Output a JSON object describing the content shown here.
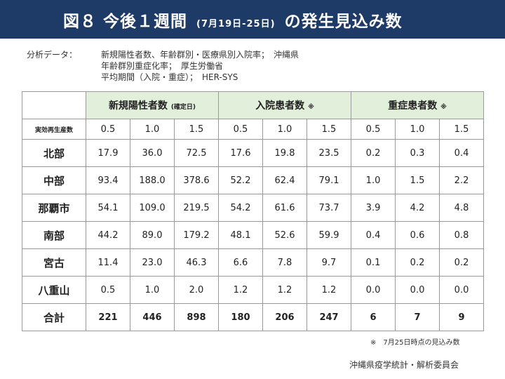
{
  "header": {
    "title_main": "図８ 今後１週間",
    "title_sub": "(7月19日-25日)",
    "title_end": "の発生見込み数"
  },
  "sources": [
    {
      "label": "分析データ：",
      "text": "新規陽性者数、年齢群別・医療県別入院率；　沖縄県"
    },
    {
      "label": "",
      "text": "年齢群別重症化率；　厚生労働省"
    },
    {
      "label": "",
      "text": "平均期間（入院・重症）；　HER-SYS"
    }
  ],
  "table": {
    "groups": [
      {
        "label": "新規陽性者数",
        "small": "(確定日)"
      },
      {
        "label": "入院患者数",
        "small": "※"
      },
      {
        "label": "重症患者数",
        "small": "※"
      }
    ],
    "scenario_label": "実効再生産数",
    "scenarios": [
      "0.5",
      "1.0",
      "1.5",
      "0.5",
      "1.0",
      "1.5",
      "0.5",
      "1.0",
      "1.5"
    ],
    "rows": [
      {
        "region": "北部",
        "values": [
          "17.9",
          "36.0",
          "72.5",
          "17.6",
          "19.8",
          "23.5",
          "0.2",
          "0.3",
          "0.4"
        ]
      },
      {
        "region": "中部",
        "values": [
          "93.4",
          "188.0",
          "378.6",
          "52.2",
          "62.4",
          "79.1",
          "1.0",
          "1.5",
          "2.2"
        ]
      },
      {
        "region": "那覇市",
        "values": [
          "54.1",
          "109.0",
          "219.5",
          "54.2",
          "61.6",
          "73.7",
          "3.9",
          "4.2",
          "4.8"
        ]
      },
      {
        "region": "南部",
        "values": [
          "44.2",
          "89.0",
          "179.2",
          "48.1",
          "52.6",
          "59.9",
          "0.4",
          "0.6",
          "0.8"
        ]
      },
      {
        "region": "宮古",
        "values": [
          "11.4",
          "23.0",
          "46.3",
          "6.6",
          "7.8",
          "9.7",
          "0.1",
          "0.2",
          "0.2"
        ]
      },
      {
        "region": "八重山",
        "values": [
          "0.5",
          "1.0",
          "2.0",
          "1.2",
          "1.2",
          "1.2",
          "0.0",
          "0.0",
          "0.0"
        ]
      }
    ],
    "total": {
      "region": "合計",
      "values": [
        "221",
        "446",
        "898",
        "180",
        "206",
        "247",
        "6",
        "7",
        "9"
      ]
    }
  },
  "note": "※　7月25日時点の見込み数",
  "footer": "沖縄県疫学統計・解析委員会"
}
